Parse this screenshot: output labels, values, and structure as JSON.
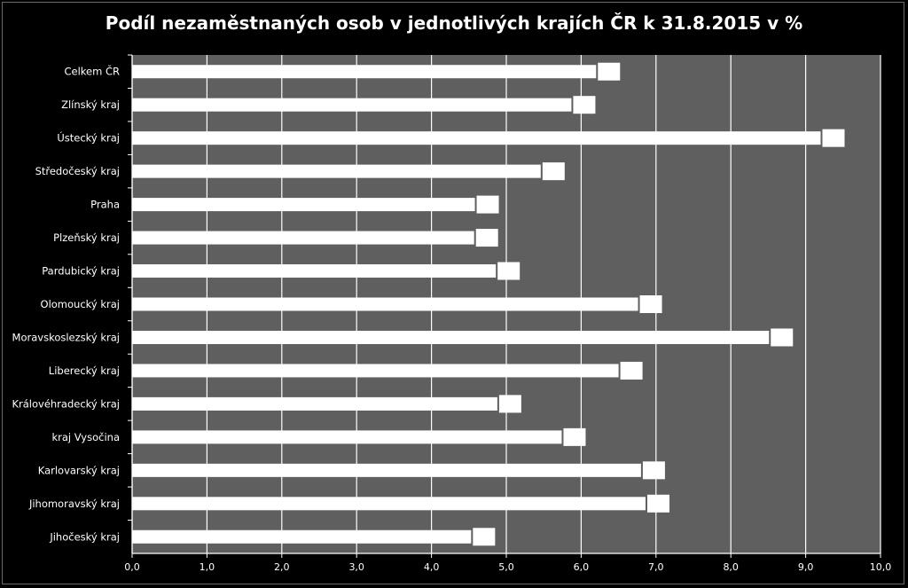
{
  "chart_data": {
    "type": "bar",
    "orientation": "horizontal",
    "title": "Podíl nezaměstnaných osob v jednotlivých krajích ČR k 31.8.2015 v %",
    "xlabel": "",
    "ylabel": "",
    "xlim": [
      0,
      10
    ],
    "x_ticks": [
      "0,0",
      "1,0",
      "2,0",
      "3,0",
      "4,0",
      "5,0",
      "6,0",
      "7,0",
      "8,0",
      "9,0",
      "10,0"
    ],
    "grid": true,
    "legend": "none",
    "categories": [
      "Celkem ČR",
      "Zlínský kraj",
      "Ústecký kraj",
      "Středočeský kraj",
      "Praha",
      "Plzeňský kraj",
      "Pardubický kraj",
      "Olomoucký kraj",
      "Moravskoslezský kraj",
      "Liberecký kraj",
      "Královéhradecký kraj",
      "kraj Vysočina",
      "Karlovarský kraj",
      "Jihomoravský kraj",
      "Jihočeský kraj"
    ],
    "values": [
      6.2,
      5.87,
      9.2,
      5.46,
      4.58,
      4.57,
      4.86,
      6.76,
      8.51,
      6.5,
      4.88,
      5.74,
      6.8,
      6.86,
      4.53
    ],
    "colors": {
      "background": "#000000",
      "plot_area": "#5f5f5f",
      "bars": "#ffffff",
      "gridlines": "#ffffff",
      "text": "#ffffff"
    }
  }
}
